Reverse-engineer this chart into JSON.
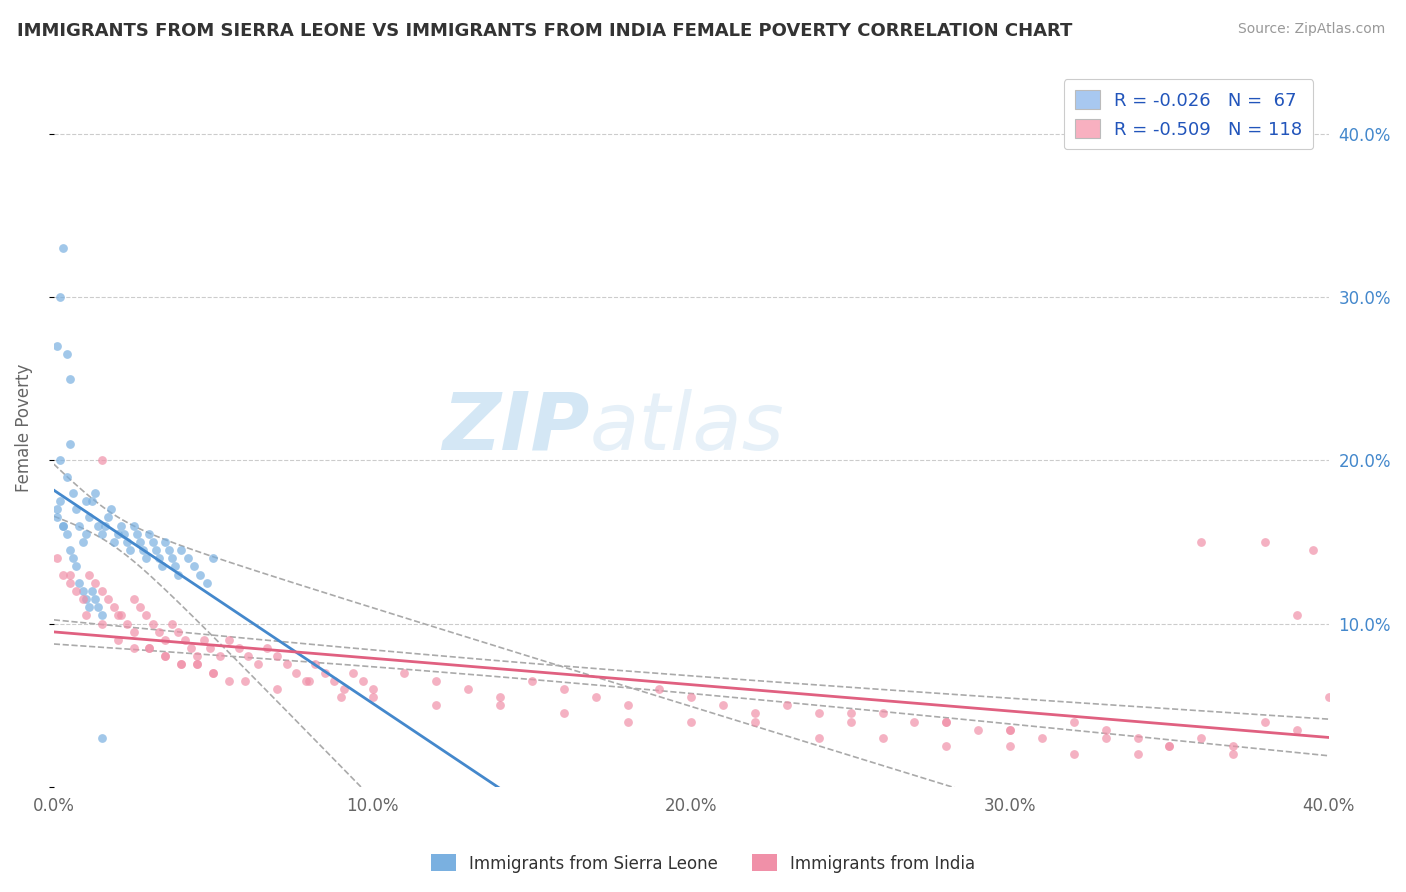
{
  "title": "IMMIGRANTS FROM SIERRA LEONE VS IMMIGRANTS FROM INDIA FEMALE POVERTY CORRELATION CHART",
  "source": "Source: ZipAtlas.com",
  "ylabel": "Female Poverty",
  "xlim": [
    0.0,
    0.4
  ],
  "ylim": [
    0.0,
    0.44
  ],
  "legend_entries": [
    {
      "label": "R = -0.026   N =  67",
      "color": "#a8c8f0"
    },
    {
      "label": "R = -0.509   N = 118",
      "color": "#f8b0c0"
    }
  ],
  "watermark_zip": "ZIP",
  "watermark_atlas": "atlas",
  "blue_color": "#7ab0e0",
  "pink_color": "#f090a8",
  "blue_line_color": "#4488cc",
  "pink_line_color": "#e06080",
  "dashed_line_color": "#aaaaaa",
  "sierra_leone_x": [
    0.001,
    0.002,
    0.003,
    0.004,
    0.005,
    0.006,
    0.007,
    0.008,
    0.009,
    0.01,
    0.011,
    0.012,
    0.013,
    0.014,
    0.015,
    0.016,
    0.017,
    0.018,
    0.019,
    0.02,
    0.021,
    0.022,
    0.023,
    0.024,
    0.025,
    0.026,
    0.027,
    0.028,
    0.029,
    0.03,
    0.031,
    0.032,
    0.033,
    0.034,
    0.035,
    0.036,
    0.037,
    0.038,
    0.039,
    0.04,
    0.042,
    0.044,
    0.046,
    0.048,
    0.05,
    0.001,
    0.002,
    0.003,
    0.004,
    0.005,
    0.006,
    0.007,
    0.008,
    0.009,
    0.01,
    0.011,
    0.012,
    0.013,
    0.014,
    0.015,
    0.001,
    0.002,
    0.003,
    0.004,
    0.005,
    0.01,
    0.015
  ],
  "sierra_leone_y": [
    0.17,
    0.2,
    0.16,
    0.19,
    0.21,
    0.18,
    0.17,
    0.16,
    0.15,
    0.175,
    0.165,
    0.175,
    0.18,
    0.16,
    0.155,
    0.16,
    0.165,
    0.17,
    0.15,
    0.155,
    0.16,
    0.155,
    0.15,
    0.145,
    0.16,
    0.155,
    0.15,
    0.145,
    0.14,
    0.155,
    0.15,
    0.145,
    0.14,
    0.135,
    0.15,
    0.145,
    0.14,
    0.135,
    0.13,
    0.145,
    0.14,
    0.135,
    0.13,
    0.125,
    0.14,
    0.165,
    0.175,
    0.16,
    0.155,
    0.145,
    0.14,
    0.135,
    0.125,
    0.12,
    0.115,
    0.11,
    0.12,
    0.115,
    0.11,
    0.105,
    0.27,
    0.3,
    0.33,
    0.265,
    0.25,
    0.155,
    0.03
  ],
  "india_x": [
    0.001,
    0.003,
    0.005,
    0.007,
    0.009,
    0.011,
    0.013,
    0.015,
    0.017,
    0.019,
    0.021,
    0.023,
    0.025,
    0.027,
    0.029,
    0.031,
    0.033,
    0.035,
    0.037,
    0.039,
    0.041,
    0.043,
    0.045,
    0.047,
    0.049,
    0.052,
    0.055,
    0.058,
    0.061,
    0.064,
    0.067,
    0.07,
    0.073,
    0.076,
    0.079,
    0.082,
    0.085,
    0.088,
    0.091,
    0.094,
    0.097,
    0.1,
    0.11,
    0.12,
    0.13,
    0.14,
    0.15,
    0.16,
    0.17,
    0.18,
    0.19,
    0.2,
    0.21,
    0.22,
    0.23,
    0.24,
    0.25,
    0.26,
    0.27,
    0.28,
    0.29,
    0.3,
    0.31,
    0.32,
    0.33,
    0.34,
    0.35,
    0.36,
    0.37,
    0.38,
    0.005,
    0.01,
    0.015,
    0.02,
    0.025,
    0.03,
    0.035,
    0.04,
    0.045,
    0.05,
    0.06,
    0.07,
    0.08,
    0.09,
    0.1,
    0.12,
    0.14,
    0.16,
    0.18,
    0.2,
    0.22,
    0.24,
    0.26,
    0.28,
    0.3,
    0.32,
    0.34,
    0.36,
    0.38,
    0.39,
    0.395,
    0.4,
    0.25,
    0.28,
    0.3,
    0.33,
    0.35,
    0.37,
    0.39,
    0.015,
    0.02,
    0.025,
    0.03,
    0.035,
    0.04,
    0.045,
    0.05,
    0.055
  ],
  "india_y": [
    0.14,
    0.13,
    0.125,
    0.12,
    0.115,
    0.13,
    0.125,
    0.12,
    0.115,
    0.11,
    0.105,
    0.1,
    0.115,
    0.11,
    0.105,
    0.1,
    0.095,
    0.09,
    0.1,
    0.095,
    0.09,
    0.085,
    0.08,
    0.09,
    0.085,
    0.08,
    0.09,
    0.085,
    0.08,
    0.075,
    0.085,
    0.08,
    0.075,
    0.07,
    0.065,
    0.075,
    0.07,
    0.065,
    0.06,
    0.07,
    0.065,
    0.06,
    0.07,
    0.065,
    0.06,
    0.055,
    0.065,
    0.06,
    0.055,
    0.05,
    0.06,
    0.055,
    0.05,
    0.045,
    0.05,
    0.045,
    0.04,
    0.045,
    0.04,
    0.04,
    0.035,
    0.035,
    0.03,
    0.04,
    0.035,
    0.03,
    0.025,
    0.03,
    0.025,
    0.15,
    0.13,
    0.105,
    0.1,
    0.09,
    0.085,
    0.085,
    0.08,
    0.075,
    0.075,
    0.07,
    0.065,
    0.06,
    0.065,
    0.055,
    0.055,
    0.05,
    0.05,
    0.045,
    0.04,
    0.04,
    0.04,
    0.03,
    0.03,
    0.025,
    0.025,
    0.02,
    0.02,
    0.15,
    0.04,
    0.035,
    0.145,
    0.055,
    0.045,
    0.04,
    0.035,
    0.03,
    0.025,
    0.02,
    0.105,
    0.2,
    0.105,
    0.095,
    0.085,
    0.08,
    0.075,
    0.075,
    0.07,
    0.065
  ]
}
